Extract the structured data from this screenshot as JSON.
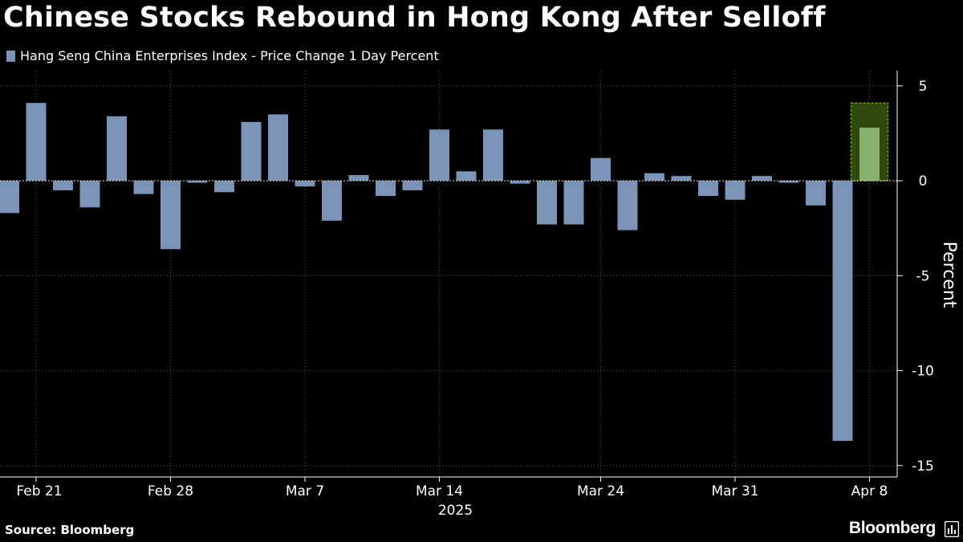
{
  "title": "Chinese Stocks Rebound in Hong Kong After Selloff",
  "source": "Source: Bloomberg",
  "brand": "Bloomberg",
  "colors": {
    "background": "#000000",
    "bar": "#7b93b7",
    "highlight_box": "#2f4a0c",
    "highlight_border": "#6f9a2a",
    "highlight_bar": "#88b06a",
    "grid": "#5a5a5a",
    "text": "#ffffff"
  },
  "chart_data": {
    "type": "bar",
    "series": [
      {
        "name": "Hang Seng China Enterprises Index - Price Change 1 Day Percent",
        "values": [
          -1.7,
          4.1,
          -0.5,
          -1.4,
          3.4,
          -0.7,
          -3.6,
          -0.1,
          -0.6,
          3.1,
          3.5,
          -0.3,
          -2.1,
          0.3,
          -0.8,
          -0.5,
          2.7,
          0.5,
          2.7,
          -0.15,
          -2.3,
          -2.3,
          1.2,
          -2.6,
          0.4,
          0.25,
          -0.8,
          -1.0,
          0.25,
          -0.1,
          -1.3,
          -13.7,
          2.8
        ]
      }
    ],
    "highlight_index": 32,
    "y_ticks": [
      5,
      0,
      -5,
      -10,
      -15
    ],
    "y_tick_labels": [
      "5",
      "0",
      "-5",
      "-10",
      "-15"
    ],
    "ylim": [
      -15.6,
      5.8
    ],
    "ylabel": "Percent",
    "x_ticks": [
      {
        "index": 1,
        "label": "Feb 21"
      },
      {
        "index": 6,
        "label": "Feb 28"
      },
      {
        "index": 11,
        "label": "Mar 7"
      },
      {
        "index": 16,
        "label": "Mar 14"
      },
      {
        "index": 22,
        "label": "Mar 24"
      },
      {
        "index": 27,
        "label": "Mar 31"
      },
      {
        "index": 32,
        "label": "Apr 8"
      }
    ],
    "year_label": "2025",
    "grid": "dotted vertical at x-ticks"
  }
}
